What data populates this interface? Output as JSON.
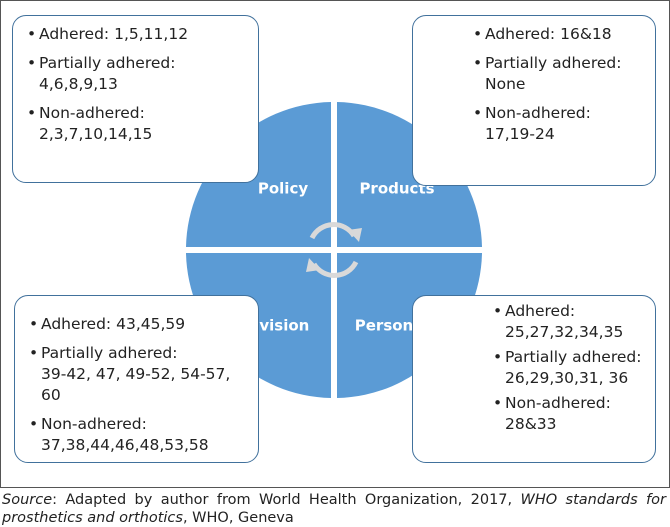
{
  "quadrants": [
    {
      "label": "Policy",
      "items": [
        {
          "status": "Adhered:",
          "numbers": "1,5,11,12"
        },
        {
          "status": "Partially adhered:",
          "numbers": "4,6,8,9,13"
        },
        {
          "status": "Non-adhered:",
          "numbers": "2,3,7,10,14,15"
        }
      ]
    },
    {
      "label": "Products",
      "items": [
        {
          "status": "Adhered:",
          "numbers": "16&18"
        },
        {
          "status": "Partially adhered:",
          "numbers": "None"
        },
        {
          "status": "Non-adhered:",
          "numbers": "17,19-24"
        }
      ]
    },
    {
      "label": "Provision",
      "items": [
        {
          "status": "Adhered:",
          "numbers": "43,45,59"
        },
        {
          "status": "Partially adhered:",
          "numbers": "39-42, 47, 49-52, 54-57, 60"
        },
        {
          "status": "Non-adhered:",
          "numbers": "37,38,44,46,48,53,58"
        }
      ]
    },
    {
      "label": "Personnel",
      "items": [
        {
          "status": "Adhered:",
          "numbers": "25,27,32,34,35"
        },
        {
          "status": "Partially adhered:",
          "numbers": "26,29,30,31, 36"
        },
        {
          "status": "Non-adhered:",
          "numbers": "28&33"
        }
      ]
    }
  ],
  "caption": {
    "source_label": "Source",
    "text_before": ": Adapted by author from World Health Organization, 2017, ",
    "title": "WHO standards for prosthetics and orthotics",
    "text_after": ", WHO, Geneva"
  }
}
